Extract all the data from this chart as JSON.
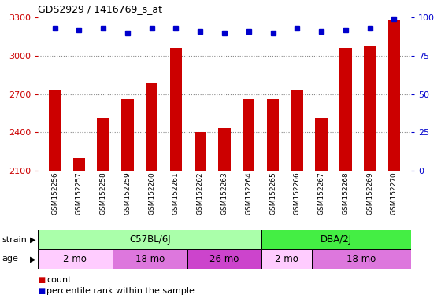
{
  "title": "GDS2929 / 1416769_s_at",
  "samples": [
    "GSM152256",
    "GSM152257",
    "GSM152258",
    "GSM152259",
    "GSM152260",
    "GSM152261",
    "GSM152262",
    "GSM152263",
    "GSM152264",
    "GSM152265",
    "GSM152266",
    "GSM152267",
    "GSM152268",
    "GSM152269",
    "GSM152270"
  ],
  "counts": [
    2730,
    2200,
    2510,
    2660,
    2790,
    3060,
    2400,
    2430,
    2660,
    2660,
    2730,
    2510,
    3060,
    3070,
    3280
  ],
  "percentile_ranks": [
    93,
    92,
    93,
    90,
    93,
    93,
    91,
    90,
    91,
    90,
    93,
    91,
    92,
    93,
    99
  ],
  "ylim_left": [
    2100,
    3300
  ],
  "ylim_right": [
    0,
    100
  ],
  "yticks_left": [
    2100,
    2400,
    2700,
    3000,
    3300
  ],
  "yticks_right": [
    0,
    25,
    50,
    75,
    100
  ],
  "bar_color": "#cc0000",
  "dot_color": "#0000cc",
  "bar_width": 0.5,
  "strain_groups": [
    {
      "label": "C57BL/6J",
      "start": 0,
      "end": 9,
      "color": "#aaffaa"
    },
    {
      "label": "DBA/2J",
      "start": 9,
      "end": 15,
      "color": "#44ee44"
    }
  ],
  "age_groups": [
    {
      "label": "2 mo",
      "start": 0,
      "end": 3,
      "color": "#ffccff"
    },
    {
      "label": "18 mo",
      "start": 3,
      "end": 6,
      "color": "#dd77dd"
    },
    {
      "label": "26 mo",
      "start": 6,
      "end": 9,
      "color": "#cc44cc"
    },
    {
      "label": "2 mo",
      "start": 9,
      "end": 11,
      "color": "#ffccff"
    },
    {
      "label": "18 mo",
      "start": 11,
      "end": 15,
      "color": "#dd77dd"
    }
  ],
  "strain_label": "strain",
  "age_label": "age",
  "legend_count_label": "count",
  "legend_pct_label": "percentile rank within the sample",
  "left_axis_color": "#cc0000",
  "right_axis_color": "#0000cc",
  "bg_color": "#ffffff",
  "tick_label_area_bg": "#cccccc",
  "dotted_line_color": "#888888",
  "dotted_yticks": [
    2400,
    2700,
    3000
  ]
}
